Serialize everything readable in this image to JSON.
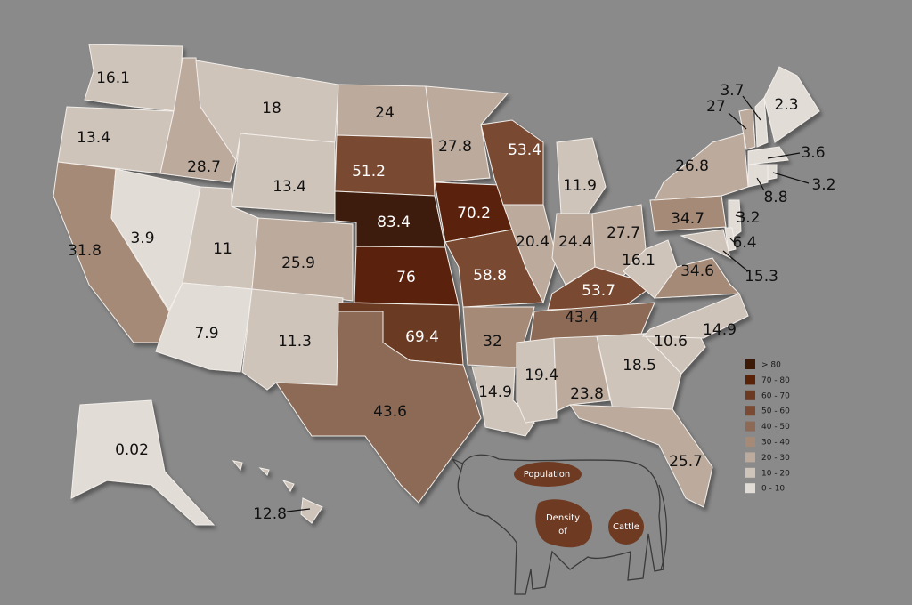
{
  "regions": [
    {
      "value": 16.1,
      "color": "#cfc4ba"
    },
    {
      "value": 13.4,
      "color": "#cfc4ba"
    },
    {
      "value": 31.8,
      "color": "#a58a78"
    },
    {
      "value": 3.9,
      "color": "#e2dcd6"
    },
    {
      "value": 28.7,
      "color": "#bcaa9c"
    },
    {
      "value": 18,
      "color": "#cfc4ba"
    },
    {
      "value": 13.4,
      "color": "#cfc4ba"
    },
    {
      "value": 11,
      "color": "#cfc4ba"
    },
    {
      "value": 25.9,
      "color": "#bcaa9c"
    },
    {
      "value": 7.9,
      "color": "#e2dcd6"
    },
    {
      "value": 11.3,
      "color": "#cfc4ba"
    },
    {
      "value": 24,
      "color": "#bcaa9c"
    },
    {
      "value": 51.2,
      "color": "#7a4a33"
    },
    {
      "value": 83.4,
      "color": "#3c1a08"
    },
    {
      "value": 76,
      "color": "#5a2207"
    },
    {
      "value": 69.4,
      "color": "#6b3a20"
    },
    {
      "value": 43.6,
      "color": "#8d6a56"
    },
    {
      "value": 27.8,
      "color": "#bcaa9c"
    },
    {
      "value": 70.2,
      "color": "#5a2207"
    },
    {
      "value": 58.8,
      "color": "#7a4a33"
    },
    {
      "value": 32,
      "color": "#a58a78"
    },
    {
      "value": 14.9,
      "color": "#cfc4ba"
    },
    {
      "value": 53.4,
      "color": "#7a4a33"
    },
    {
      "value": 20.4,
      "color": "#bcaa9c"
    },
    {
      "value": 11.9,
      "color": "#cfc4ba"
    },
    {
      "value": 24.4,
      "color": "#bcaa9c"
    },
    {
      "value": 27.7,
      "color": "#bcaa9c"
    },
    {
      "value": 53.7,
      "color": "#7a4a33"
    },
    {
      "value": 43.4,
      "color": "#8d6a56"
    },
    {
      "value": 19.4,
      "color": "#cfc4ba"
    },
    {
      "value": 23.8,
      "color": "#bcaa9c"
    },
    {
      "value": 18.5,
      "color": "#cfc4ba"
    },
    {
      "value": 25.7,
      "color": "#bcaa9c"
    },
    {
      "value": 10.6,
      "color": "#cfc4ba"
    },
    {
      "value": 14.9,
      "color": "#cfc4ba"
    },
    {
      "value": 34.6,
      "color": "#a58a78"
    },
    {
      "value": 16.1,
      "color": "#cfc4ba"
    },
    {
      "value": 34.7,
      "color": "#a58a78"
    },
    {
      "value": 26.8,
      "color": "#bcaa9c"
    },
    {
      "value": 3.2,
      "color": "#e2dcd6"
    },
    {
      "value": 15.3,
      "color": "#cfc4ba"
    },
    {
      "value": 6.4,
      "color": "#e2dcd6"
    },
    {
      "value": 27,
      "color": "#bcaa9c"
    },
    {
      "value": 3.7,
      "color": "#e2dcd6"
    },
    {
      "value": 2.3,
      "color": "#e2dcd6"
    },
    {
      "value": 3.6,
      "color": "#e2dcd6"
    },
    {
      "value": 8.8,
      "color": "#e2dcd6"
    },
    {
      "value": 3.2,
      "color": "#e2dcd6"
    },
    {
      "value": 0.02,
      "color": "#e2dcd6"
    },
    {
      "value": 12.8,
      "color": "#cfc4ba"
    }
  ],
  "legend": [
    {
      "label": "> 80",
      "color": "#3c1a08"
    },
    {
      "label": "70 - 80",
      "color": "#5a2207"
    },
    {
      "label": "60 - 70",
      "color": "#6b3a20"
    },
    {
      "label": "50 - 60",
      "color": "#7a4a33"
    },
    {
      "label": "40 - 50",
      "color": "#8d6a56"
    },
    {
      "label": "30 - 40",
      "color": "#a58a78"
    },
    {
      "label": "20 - 30",
      "color": "#bcaa9c"
    },
    {
      "label": "10 - 20",
      "color": "#cfc4ba"
    },
    {
      "label": "0 - 10",
      "color": "#e2dcd6"
    }
  ],
  "title": {
    "line1": "Population",
    "line2": "Density",
    "line3": "of",
    "line4": "Cattle"
  }
}
